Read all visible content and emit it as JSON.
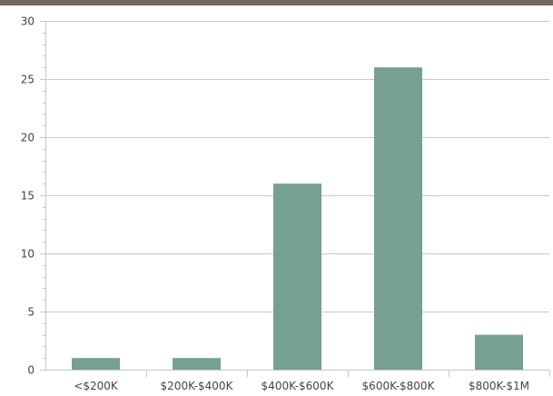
{
  "colors": {
    "top_bar": "#76685e",
    "bar": "#76a08f",
    "grid": "#c8c8c8",
    "axis": "#c8c8c8",
    "text": "#444444"
  },
  "chart_data": {
    "type": "bar",
    "title": "",
    "xlabel": "",
    "ylabel": "",
    "categories": [
      "<$200K",
      "$200K-$400K",
      "$400K-$600K",
      "$600K-$800K",
      "$800K-$1M"
    ],
    "values": [
      1,
      1,
      16,
      26,
      3
    ],
    "ylim": [
      0,
      30
    ],
    "yticks": [
      "0",
      "5",
      "10",
      "15",
      "20",
      "25",
      "30"
    ],
    "grid": true,
    "legend": "none"
  }
}
